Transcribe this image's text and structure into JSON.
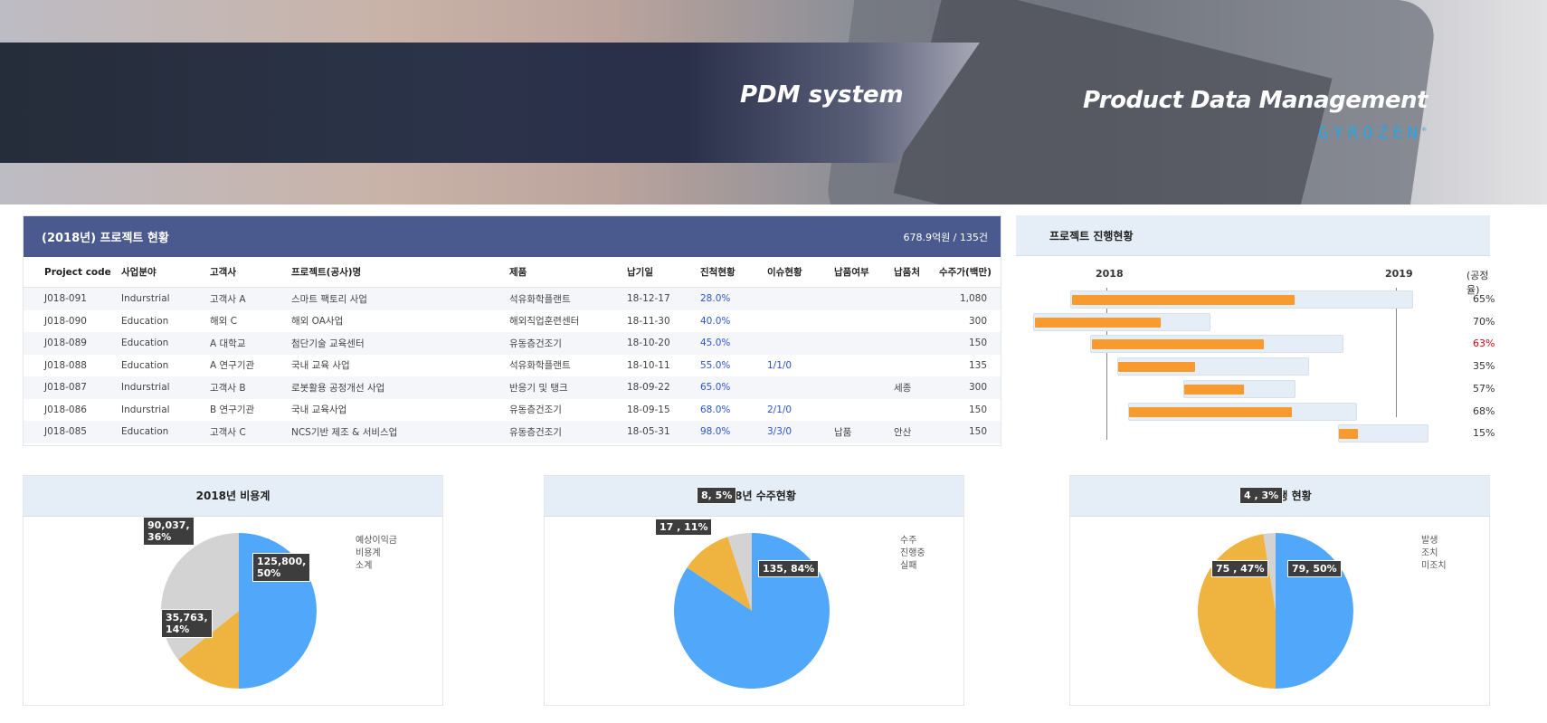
{
  "banner": {
    "title": "PDM system",
    "subtitle": "Product Data Management",
    "logo": "GYROZEN"
  },
  "project": {
    "title": "(2018년) 프로젝트 현황",
    "summary": "678.9억원 / 135건",
    "columns": [
      "Project code",
      "사업분야",
      "고객사",
      "프로젝트(공사)명",
      "제품",
      "납기일",
      "진척현황",
      "이슈현황",
      "납품여부",
      "납품처",
      "수주가(백만)"
    ],
    "rows": [
      [
        "J018-091",
        "Indurstrial",
        "고객사 A",
        "스마트 팩토리 사업",
        "석유화학플랜트",
        "18-12-17",
        "28.0%",
        "",
        "",
        "",
        "1,080"
      ],
      [
        "J018-090",
        "Education",
        "해외 C",
        "해외 OA사업",
        "해외직업훈련센터",
        "18-11-30",
        "40.0%",
        "",
        "",
        "",
        "300"
      ],
      [
        "J018-089",
        "Education",
        "A 대학교",
        "첨단기술 교육센터",
        "유동층건조기",
        "18-10-20",
        "45.0%",
        "",
        "",
        "",
        "150"
      ],
      [
        "J018-088",
        "Education",
        "A 연구기관",
        "국내 교육 사업",
        "석유화학플랜트",
        "18-10-11",
        "55.0%",
        "1/1/0",
        "",
        "",
        "135"
      ],
      [
        "J018-087",
        "Indurstrial",
        "고객사 B",
        "로봇활용 공정개선 사업",
        "반응기 및 탱크",
        "18-09-22",
        "65.0%",
        "",
        "",
        "세종",
        "300"
      ],
      [
        "J018-086",
        "Indurstrial",
        "B 연구기관",
        "국내 교육사업",
        "유동층건조기",
        "18-09-15",
        "68.0%",
        "2/1/0",
        "",
        "",
        "150"
      ],
      [
        "J018-085",
        "Education",
        "고객사 C",
        "NCS기반 제조 & 서비스업",
        "유동층건조기",
        "18-05-31",
        "98.0%",
        "3/3/0",
        "납품",
        "안산",
        "150"
      ]
    ]
  },
  "gantt": {
    "title": "프로젝트 진행현황",
    "years": [
      "2018",
      "2019"
    ],
    "rate_label": "(공정율)",
    "rates": [
      "65%",
      "70%",
      "63%",
      "35%",
      "57%",
      "68%",
      "15%"
    ],
    "rate_values": [
      65,
      70,
      63,
      35,
      57,
      68,
      15
    ],
    "highlight_index": 2,
    "highlight_color": "#e60012",
    "bar_color": "#f79b2e"
  },
  "charts": [
    {
      "title": "2018년 비용계",
      "type": "pie",
      "legend": [
        "예상이익금",
        "비용계",
        "소계"
      ],
      "values": [
        125800,
        35763,
        90037
      ],
      "percents": [
        50,
        14,
        36
      ],
      "labels": [
        "125,800,\n50%",
        "35,763,\n14%",
        "90,037,\n36%"
      ],
      "colors": [
        "#51a7f9",
        "#efb440",
        "#d3d3d3"
      ]
    },
    {
      "title": "2018년 수주현황",
      "type": "pie",
      "legend": [
        "수주",
        "진행중",
        "실패"
      ],
      "values": [
        135,
        17,
        8
      ],
      "percents": [
        84,
        11,
        5
      ],
      "labels": [
        "135, 84%",
        "17 , 11%",
        "8, 5%"
      ],
      "colors": [
        "#51a7f9",
        "#efb440",
        "#d3d3d3"
      ]
    },
    {
      "title": "이슈발생 현황",
      "type": "pie",
      "legend": [
        "발생",
        "조치",
        "미조치"
      ],
      "values": [
        79,
        75,
        4
      ],
      "percents": [
        50,
        47,
        3
      ],
      "labels": [
        "79, 50%",
        "75 , 47%",
        "4 , 3%"
      ],
      "colors": [
        "#51a7f9",
        "#efb440",
        "#d3d3d3"
      ]
    }
  ]
}
